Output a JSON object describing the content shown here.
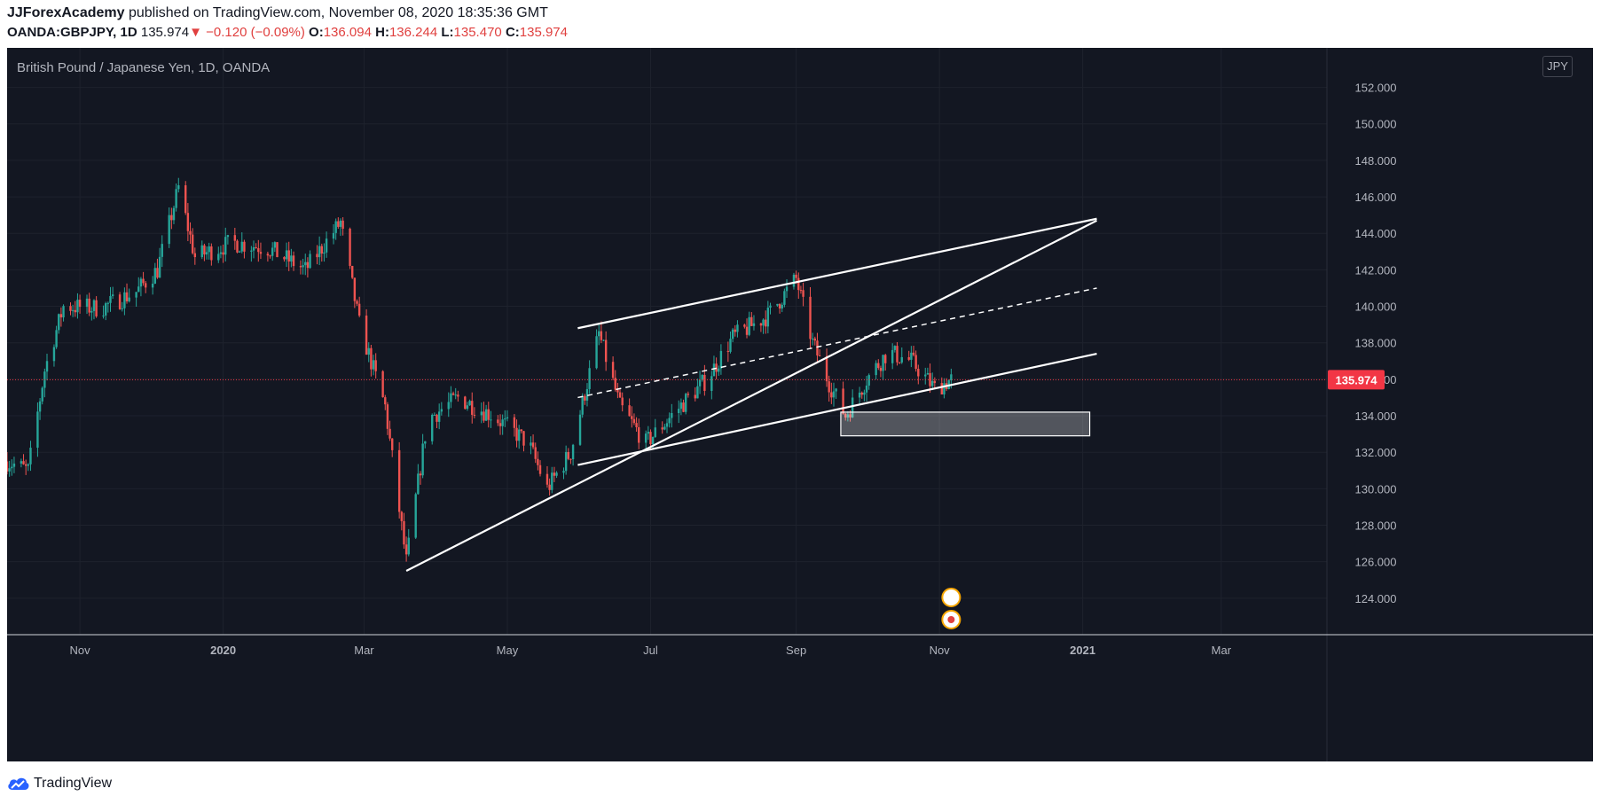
{
  "header": {
    "author": "JJForexAcademy",
    "published_text": " published on TradingView.com, November 08, 2020 18:35:36 GMT",
    "symbol": "OANDA:GBPJPY, 1D",
    "last": "135.974",
    "change": "▼ −0.120 (−0.09%)",
    "o_label": "O:",
    "o_value": "136.094",
    "h_label": "H:",
    "h_value": "136.244",
    "l_label": "L:",
    "l_value": "135.470",
    "c_label": "C:",
    "c_value": "135.974"
  },
  "chart": {
    "title": "British Pound / Japanese Yen, 1D, OANDA",
    "currency_badge": "JPY",
    "price_tag": "135.974"
  },
  "footer": {
    "brand": "TradingView"
  },
  "colors": {
    "up": "#26a69a",
    "down": "#ef5350",
    "background": "#131722",
    "grid": "#1e222d",
    "axis_text": "#b2b5be",
    "price_tag": "#f23645"
  },
  "chart_data": {
    "type": "candlestick",
    "title": "British Pound / Japanese Yen, 1D, OANDA",
    "ylim": [
      122.0,
      153.0
    ],
    "y_ticks": [
      "152.000",
      "150.000",
      "148.000",
      "146.000",
      "144.000",
      "142.000",
      "140.000",
      "138.000",
      "136.000",
      "134.000",
      "132.000",
      "130.000",
      "128.000",
      "126.000",
      "124.000"
    ],
    "x_ticks": [
      "Nov",
      "2020",
      "Mar",
      "May",
      "Jul",
      "Sep",
      "Nov",
      "2021",
      "Mar"
    ],
    "x_tick_dates": [
      "2019-11-01",
      "2020-01-01",
      "2020-03-01",
      "2020-05-01",
      "2020-07-01",
      "2020-09-01",
      "2020-11-01",
      "2021-01-01",
      "2021-03-01"
    ],
    "x_range": [
      "2019-10-01",
      "2021-04-15"
    ],
    "last_price": 135.974,
    "price_line_color": "#f23645",
    "closes_by_month": [
      {
        "date": "2019-10-01",
        "price": 131.5
      },
      {
        "date": "2019-10-10",
        "price": 131.0
      },
      {
        "date": "2019-10-17",
        "price": 136.5
      },
      {
        "date": "2019-10-25",
        "price": 140.0
      },
      {
        "date": "2019-11-10",
        "price": 139.9
      },
      {
        "date": "2019-11-25",
        "price": 140.8
      },
      {
        "date": "2019-12-04",
        "price": 142.0
      },
      {
        "date": "2019-12-13",
        "price": 146.5
      },
      {
        "date": "2019-12-20",
        "price": 142.7
      },
      {
        "date": "2020-01-05",
        "price": 143.5
      },
      {
        "date": "2020-01-20",
        "price": 143.2
      },
      {
        "date": "2020-02-05",
        "price": 142.0
      },
      {
        "date": "2020-02-20",
        "price": 144.6
      },
      {
        "date": "2020-02-28",
        "price": 139.0
      },
      {
        "date": "2020-03-10",
        "price": 134.5
      },
      {
        "date": "2020-03-19",
        "price": 126.0
      },
      {
        "date": "2020-03-28",
        "price": 133.8
      },
      {
        "date": "2020-04-10",
        "price": 135.0
      },
      {
        "date": "2020-04-25",
        "price": 134.0
      },
      {
        "date": "2020-05-10",
        "price": 132.5
      },
      {
        "date": "2020-05-18",
        "price": 130.0
      },
      {
        "date": "2020-05-28",
        "price": 132.0
      },
      {
        "date": "2020-06-09",
        "price": 138.5
      },
      {
        "date": "2020-06-18",
        "price": 134.5
      },
      {
        "date": "2020-06-29",
        "price": 132.5
      },
      {
        "date": "2020-07-15",
        "price": 134.7
      },
      {
        "date": "2020-07-25",
        "price": 136.0
      },
      {
        "date": "2020-08-05",
        "price": 138.3
      },
      {
        "date": "2020-08-20",
        "price": 139.5
      },
      {
        "date": "2020-09-01",
        "price": 141.5
      },
      {
        "date": "2020-09-08",
        "price": 138.0
      },
      {
        "date": "2020-09-15",
        "price": 135.8
      },
      {
        "date": "2020-09-22",
        "price": 134.0
      },
      {
        "date": "2020-10-01",
        "price": 136.0
      },
      {
        "date": "2020-10-10",
        "price": 137.5
      },
      {
        "date": "2020-10-20",
        "price": 137.0
      },
      {
        "date": "2020-10-30",
        "price": 135.5
      },
      {
        "date": "2020-11-06",
        "price": 135.974
      }
    ],
    "trendlines": [
      {
        "name": "upper-channel",
        "style": "solid",
        "from": {
          "date": "2020-05-31",
          "price": 138.8
        },
        "to": {
          "date": "2021-01-07",
          "price": 144.8
        }
      },
      {
        "name": "lower-channel",
        "style": "solid",
        "from": {
          "date": "2020-05-31",
          "price": 131.3
        },
        "to": {
          "date": "2021-01-07",
          "price": 137.4
        }
      },
      {
        "name": "mid-channel",
        "style": "dashed",
        "from": {
          "date": "2020-05-31",
          "price": 135.0
        },
        "to": {
          "date": "2021-01-07",
          "price": 141.0
        }
      },
      {
        "name": "rising-support",
        "style": "solid",
        "from": {
          "date": "2020-03-19",
          "price": 125.5
        },
        "to": {
          "date": "2021-01-07",
          "price": 144.7
        }
      }
    ],
    "zones": [
      {
        "name": "demand-zone",
        "from": {
          "date": "2020-09-20",
          "price": 134.2
        },
        "to": {
          "date": "2021-01-04",
          "price": 132.9
        }
      }
    ],
    "grid": true
  }
}
